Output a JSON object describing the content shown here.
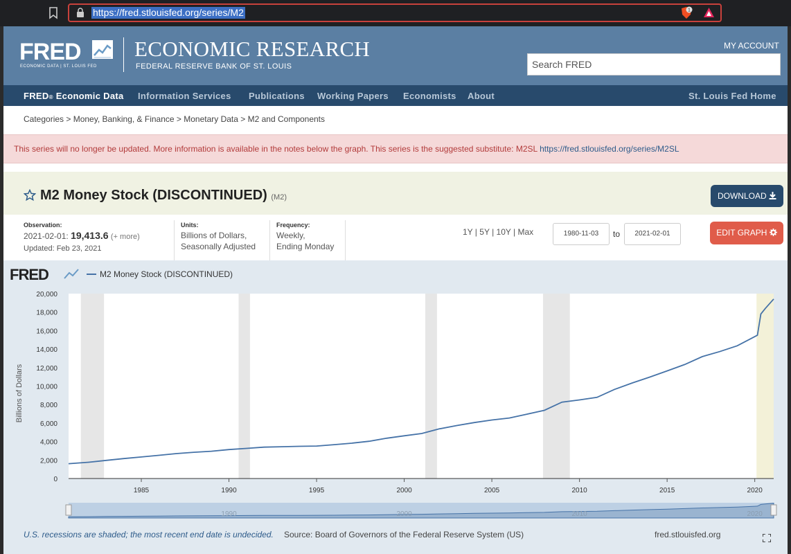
{
  "browser": {
    "url": "https://fred.stlouisfed.org/series/M2",
    "shield_count": "1"
  },
  "header": {
    "logo": "FRED",
    "logo_sub": "ECONOMIC DATA  |  ST. LOUIS FED",
    "title": "ECONOMIC RESEARCH",
    "subtitle": "FEDERAL RESERVE BANK OF ST. LOUIS",
    "my_account": "MY ACCOUNT",
    "search_placeholder": "Search FRED"
  },
  "nav": {
    "fred_prefix": "FRED",
    "fred_reg": "®",
    "fred_rest": " Economic Data",
    "items": [
      "Information Services",
      "Publications",
      "Working Papers",
      "Economists",
      "About"
    ],
    "right": "St. Louis Fed Home"
  },
  "breadcrumb": "Categories > Money, Banking, & Finance > Monetary Data > M2 and Components",
  "alert": {
    "text": "This series will no longer be updated. More information is available in the notes below the graph. This series is the suggested substitute: M2SL ",
    "link": "https://fred.stlouisfed.org/series/M2SL"
  },
  "series": {
    "title": "M2 Money Stock (DISCONTINUED)",
    "code": "(M2)",
    "download_label": "DOWNLOAD"
  },
  "meta": {
    "observation_label": "Observation:",
    "observation_date": "2021-02-01:",
    "observation_value": "19,413.6",
    "observation_more": "(+ more)",
    "updated": "Updated: Feb 23, 2021",
    "units_label": "Units:",
    "units_line1": "Billions of Dollars,",
    "units_line2": "Seasonally Adjusted",
    "frequency_label": "Frequency:",
    "frequency_line1": "Weekly,",
    "frequency_line2": "Ending Monday"
  },
  "controls": {
    "ranges": [
      "1Y",
      "5Y",
      "10Y",
      "Max"
    ],
    "start_date": "1980-11-03",
    "to": "to",
    "end_date": "2021-02-01",
    "edit_label": "EDIT GRAPH"
  },
  "chart_data": {
    "type": "line",
    "legend_logo": "FRED",
    "series": [
      {
        "name": "M2 Money Stock (DISCONTINUED)",
        "color": "#4572a7",
        "points": [
          [
            1980.85,
            1600
          ],
          [
            1982.0,
            1760
          ],
          [
            1983.0,
            1960
          ],
          [
            1984.0,
            2160
          ],
          [
            1985.0,
            2330
          ],
          [
            1986.0,
            2510
          ],
          [
            1987.0,
            2700
          ],
          [
            1988.0,
            2840
          ],
          [
            1989.0,
            2950
          ],
          [
            1990.0,
            3130
          ],
          [
            1991.0,
            3260
          ],
          [
            1992.0,
            3390
          ],
          [
            1993.0,
            3440
          ],
          [
            1994.0,
            3480
          ],
          [
            1995.0,
            3510
          ],
          [
            1996.0,
            3660
          ],
          [
            1997.0,
            3820
          ],
          [
            1998.0,
            4030
          ],
          [
            1999.0,
            4360
          ],
          [
            2000.0,
            4620
          ],
          [
            2001.0,
            4870
          ],
          [
            2002.0,
            5370
          ],
          [
            2003.0,
            5730
          ],
          [
            2004.0,
            6050
          ],
          [
            2005.0,
            6330
          ],
          [
            2006.0,
            6550
          ],
          [
            2007.0,
            6960
          ],
          [
            2008.0,
            7380
          ],
          [
            2009.0,
            8260
          ],
          [
            2010.0,
            8500
          ],
          [
            2011.0,
            8780
          ],
          [
            2012.0,
            9640
          ],
          [
            2013.0,
            10330
          ],
          [
            2014.0,
            10970
          ],
          [
            2015.0,
            11640
          ],
          [
            2016.0,
            12330
          ],
          [
            2017.0,
            13180
          ],
          [
            2018.0,
            13730
          ],
          [
            2019.0,
            14360
          ],
          [
            2020.0,
            15350
          ],
          [
            2020.15,
            15500
          ],
          [
            2020.35,
            17800
          ],
          [
            2020.6,
            18400
          ],
          [
            2021.08,
            19413.6
          ]
        ]
      }
    ],
    "recessions": [
      [
        1981.55,
        1982.87
      ],
      [
        1990.55,
        1991.2
      ],
      [
        2001.2,
        2001.87
      ],
      [
        2007.92,
        2009.45
      ]
    ],
    "undecided_start": 2020.1,
    "ylabel": "Billions of Dollars",
    "ylim": [
      0,
      20000
    ],
    "yticks": [
      "0",
      "2,000",
      "4,000",
      "6,000",
      "8,000",
      "10,000",
      "12,000",
      "14,000",
      "16,000",
      "18,000",
      "20,000"
    ],
    "xlim": [
      1980.85,
      2021.08
    ],
    "xticks": [
      "1985",
      "1990",
      "1995",
      "2000",
      "2005",
      "2010",
      "2015",
      "2020"
    ],
    "navigator_ticks": [
      "1990",
      "2000",
      "2010",
      "2020"
    ],
    "grid": false
  },
  "footer": {
    "note": "U.S. recessions are shaded; the most recent end date is undecided.",
    "source": "Source: Board of Governors of the Federal Reserve System (US)",
    "site": "fred.stlouisfed.org"
  },
  "colors": {
    "header_bg": "#5b7fa3",
    "nav_bg": "#284a6c",
    "alert_bg": "#f5d9d9",
    "edit_btn": "#e05c4a",
    "line": "#4572a7"
  }
}
